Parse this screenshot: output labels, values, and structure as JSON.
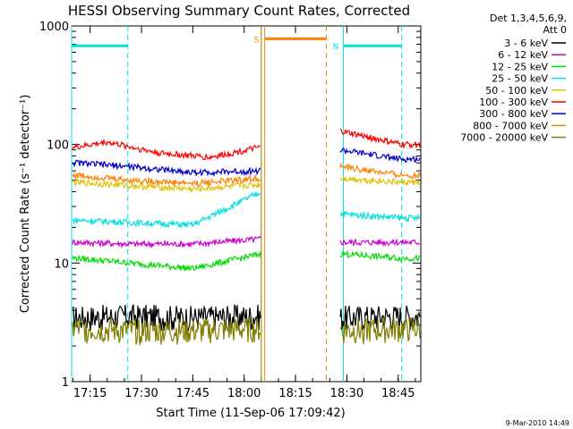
{
  "chart_data": {
    "type": "line",
    "title": "HESSI Observing Summary Count Rates, Corrected",
    "xlabel": "Start Time (11-Sep-06 17:09:42)",
    "ylabel": "Corrected Count Rate (s⁻¹ detector⁻¹)",
    "yscale": "log",
    "ylim": [
      1,
      1000
    ],
    "xlim_minutes": [
      17.16,
      18.86
    ],
    "y_tick_labels": [
      "1",
      "10",
      "100",
      "1000"
    ],
    "x_tick_labels": [
      "17:15",
      "17:30",
      "17:45",
      "18:00",
      "18:15",
      "18:30",
      "18:45"
    ],
    "legend": {
      "header": [
        "Det 1,3,4,5,6,9,",
        "Att 0"
      ],
      "placement": "right"
    },
    "series": [
      {
        "name": "3 - 6 keV",
        "color": "#000000",
        "x": [
          "17:11",
          "17:27",
          "17:45",
          "18:05",
          "18:28",
          "18:46"
        ],
        "y": [
          3.5,
          3.6,
          3.5,
          3.6,
          3.5,
          3.6
        ]
      },
      {
        "name": "6 - 12 keV",
        "color": "#cc00cc",
        "x": [
          "17:11",
          "17:27",
          "17:45",
          "18:05",
          "18:28",
          "18:46"
        ],
        "y": [
          15,
          14.5,
          14.5,
          16,
          15,
          15
        ]
      },
      {
        "name": "12 - 25 keV",
        "color": "#00dd00",
        "x": [
          "17:11",
          "17:27",
          "17:45",
          "18:05",
          "18:28",
          "18:46"
        ],
        "y": [
          11,
          10,
          9,
          12,
          12,
          11
        ]
      },
      {
        "name": "25 - 50 keV",
        "color": "#00e0e0",
        "x": [
          "17:11",
          "17:27",
          "17:45",
          "18:05",
          "18:28",
          "18:46"
        ],
        "y": [
          23,
          22,
          21,
          40,
          26,
          24
        ]
      },
      {
        "name": "50 - 100 keV",
        "color": "#e0c000",
        "x": [
          "17:11",
          "17:27",
          "17:45",
          "18:05",
          "18:28",
          "18:46"
        ],
        "y": [
          48,
          45,
          42,
          46,
          52,
          48
        ]
      },
      {
        "name": "100 - 300 keV",
        "color": "#ff0000",
        "x": [
          "17:11",
          "17:20",
          "17:35",
          "17:50",
          "18:05",
          "18:28",
          "18:46"
        ],
        "y": [
          95,
          105,
          85,
          78,
          95,
          130,
          100
        ]
      },
      {
        "name": "300 - 800 keV",
        "color": "#0000cc",
        "x": [
          "17:11",
          "17:27",
          "17:45",
          "18:05",
          "18:28",
          "18:46"
        ],
        "y": [
          70,
          65,
          58,
          60,
          90,
          75
        ]
      },
      {
        "name": "800 - 7000 keV",
        "color": "#ff8000",
        "x": [
          "17:11",
          "17:27",
          "17:45",
          "18:05",
          "18:28",
          "18:46"
        ],
        "y": [
          55,
          50,
          47,
          52,
          65,
          55
        ]
      },
      {
        "name": "7000 - 20000 keV",
        "color": "#808000",
        "x": [
          "17:11",
          "17:27",
          "17:45",
          "18:05",
          "18:28",
          "18:46"
        ],
        "y": [
          2.8,
          2.7,
          2.7,
          2.8,
          2.7,
          2.8
        ]
      }
    ],
    "annotations": [
      {
        "type": "flag-bar",
        "label": "",
        "color": "#00e0e0",
        "x_start": "17:09",
        "x_end": "17:26",
        "y": 680
      },
      {
        "type": "flag-bar",
        "label": "N",
        "color": "#00e0e0",
        "x_start": "18:29",
        "x_end": "18:46",
        "y": 680
      },
      {
        "type": "flag-bar",
        "label": "S",
        "color": "#ff8000",
        "x_start": "18:06",
        "x_end": "18:24",
        "y": 780
      },
      {
        "type": "vline-solid",
        "color": "#00e0e0",
        "x": "17:09"
      },
      {
        "type": "vline-dashed",
        "color": "#00e0e0",
        "x": "17:26"
      },
      {
        "type": "vline-solid",
        "color": "#00e0e0",
        "x": "18:29"
      },
      {
        "type": "vline-dashed",
        "color": "#00e0e0",
        "x": "18:46"
      },
      {
        "type": "vline-solid",
        "color": "#ff8000",
        "x": "18:06"
      },
      {
        "type": "vline-dashed",
        "color": "#ff8000",
        "x": "18:24"
      },
      {
        "type": "vline-solid",
        "color": "#808000",
        "x": "18:05"
      }
    ],
    "footer": "9-Mar-2010 14:49"
  }
}
